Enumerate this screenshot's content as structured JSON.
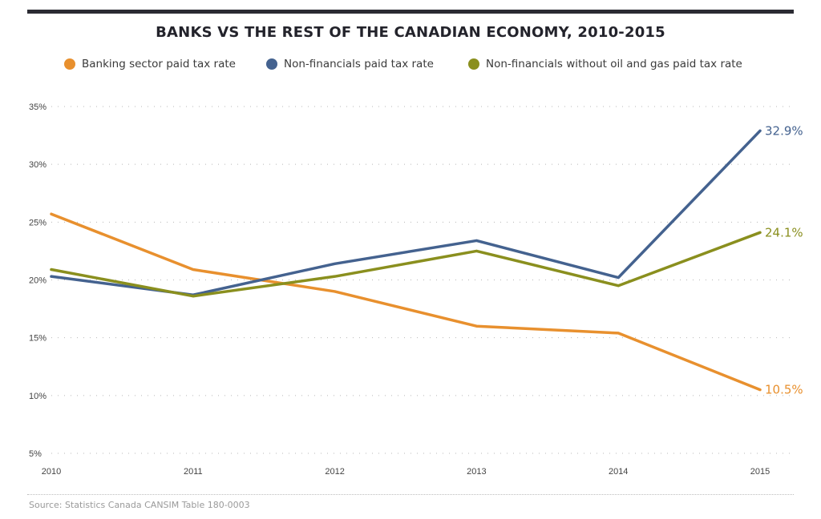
{
  "chart_data": {
    "type": "line",
    "title": "BANKS VS THE REST OF THE CANADIAN ECONOMY, 2010-2015",
    "x": [
      "2010",
      "2011",
      "2012",
      "2013",
      "2014",
      "2015"
    ],
    "ylim": [
      5,
      35
    ],
    "yticks": [
      5,
      10,
      15,
      20,
      25,
      30,
      35
    ],
    "ytick_labels": [
      "5%",
      "10%",
      "15%",
      "20%",
      "25%",
      "30%",
      "35%"
    ],
    "grid": true,
    "legend_position": "top",
    "series": [
      {
        "name": "Banking sector paid tax rate",
        "color": "#e8902e",
        "values": [
          25.7,
          20.9,
          19.0,
          16.0,
          15.4,
          10.5
        ],
        "end_label": "10.5%"
      },
      {
        "name": "Non-financials paid tax rate",
        "color": "#44628f",
        "values": [
          20.3,
          18.7,
          21.4,
          23.4,
          20.2,
          32.9
        ],
        "end_label": "32.9%"
      },
      {
        "name": "Non-financials without oil and gas paid tax rate",
        "color": "#8a8f1e",
        "values": [
          20.9,
          18.6,
          20.3,
          22.5,
          19.5,
          24.1
        ],
        "end_label": "24.1%"
      }
    ],
    "source": "Source: Statistics Canada CANSIM Table 180-0003"
  }
}
